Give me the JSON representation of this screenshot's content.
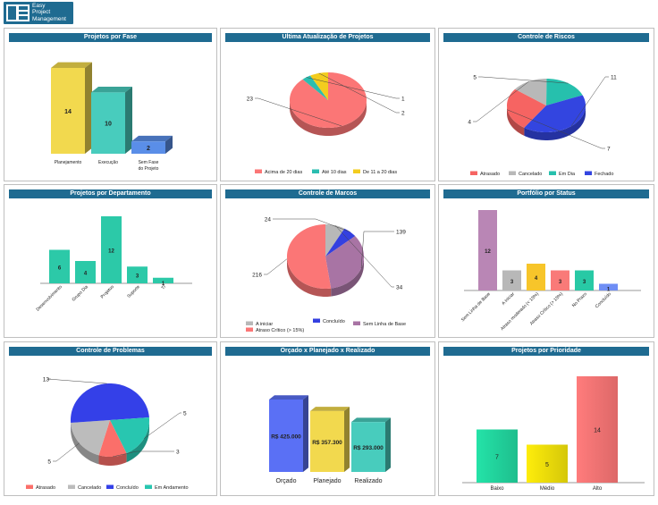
{
  "logo": {
    "line1": "Easy",
    "line2": "Project",
    "line3": "Management"
  },
  "panels": {
    "fase": {
      "title": "Projetos por Fase"
    },
    "atualizacao": {
      "title": "Ultima Atualização de Projetos"
    },
    "riscos": {
      "title": "Controle de Riscos"
    },
    "departamento": {
      "title": "Projetos por Departamento"
    },
    "marcos": {
      "title": "Controle de Marcos"
    },
    "portfolio": {
      "title": "Portfólio por Status"
    },
    "problemas": {
      "title": "Controle de Problemas"
    },
    "orcado": {
      "title": "Orçado x Planejado x Realizado"
    },
    "prioridade": {
      "title": "Projetos por Prioridade"
    }
  },
  "chart_data": [
    {
      "id": "fase",
      "type": "bar",
      "categories": [
        "Planejamento",
        "Execução",
        "Sem Fase do Projeto"
      ],
      "values": [
        14,
        10,
        2
      ],
      "colors": [
        "#f2d94e",
        "#48ccbd",
        "#5a8ee8"
      ]
    },
    {
      "id": "atualizacao",
      "type": "pie",
      "labels": [
        "Acima de 20 dias",
        "Até 10 dias",
        "De 11 a 20 dias"
      ],
      "values": [
        23,
        1,
        2
      ],
      "colors": [
        "#fb7676",
        "#2bbdb0",
        "#f3cc1e"
      ]
    },
    {
      "id": "riscos",
      "type": "pie",
      "labels": [
        "Atrasado",
        "Cancelado",
        "Em Dia",
        "Fechado"
      ],
      "values": [
        7,
        4,
        5,
        11
      ],
      "colors": [
        "#f66462",
        "#b8b8b8",
        "#26c0ad",
        "#3345e0"
      ]
    },
    {
      "id": "departamento",
      "type": "bar",
      "categories": [
        "Desenvolvimento",
        "Grupo Dia",
        "Projetos",
        "Suporte",
        "TI"
      ],
      "values": [
        6,
        4,
        12,
        3,
        1
      ],
      "colors": [
        "#2cc9a8",
        "#2cc9a8",
        "#2cc9a8",
        "#2cc9a8",
        "#2cc9a8"
      ]
    },
    {
      "id": "marcos",
      "type": "pie",
      "labels": [
        "A iniciar",
        "Concluído",
        "Sem Linha de Base",
        "Atraso Crítico (> 15%)"
      ],
      "values": [
        34,
        24,
        139,
        216
      ],
      "colors": [
        "#b8b8b8",
        "#3440e0",
        "#a874a4",
        "#fb7676"
      ]
    },
    {
      "id": "portfolio",
      "type": "bar",
      "categories": [
        "Sem Linha de Base",
        "A iniciar",
        "Atraso moderado (< 15%)",
        "Atraso Crítico (> 15%)",
        "No Prazo",
        "Concluído"
      ],
      "values": [
        12,
        3,
        4,
        3,
        3,
        1
      ],
      "colors": [
        "#b986b5",
        "#b8b8b8",
        "#f7c52a",
        "#f97a78",
        "#28c9a5",
        "#6f8ef5"
      ]
    },
    {
      "id": "problemas",
      "type": "pie",
      "labels": [
        "Atrasado",
        "Cancelado",
        "Concluído",
        "Em Andamento"
      ],
      "values": [
        3,
        5,
        13,
        5
      ],
      "colors": [
        "#fb6f6a",
        "#bcbcbc",
        "#3440e8",
        "#28c6b0"
      ]
    },
    {
      "id": "orcado",
      "type": "bar",
      "categories": [
        "Orçado",
        "Planejado",
        "Realizado"
      ],
      "values": [
        425000,
        357300,
        293000
      ],
      "labels": [
        "R$ 425.000",
        "R$ 357.300",
        "R$ 293.000"
      ],
      "colors": [
        "#5a70f5",
        "#f2d94e",
        "#48ccbd"
      ]
    },
    {
      "id": "prioridade",
      "type": "bar",
      "categories": [
        "Baixo",
        "Médio",
        "Alto"
      ],
      "values": [
        7,
        5,
        14
      ],
      "colors": [
        "#22d8a0",
        "#f2e20a",
        "#fb7676"
      ]
    }
  ]
}
